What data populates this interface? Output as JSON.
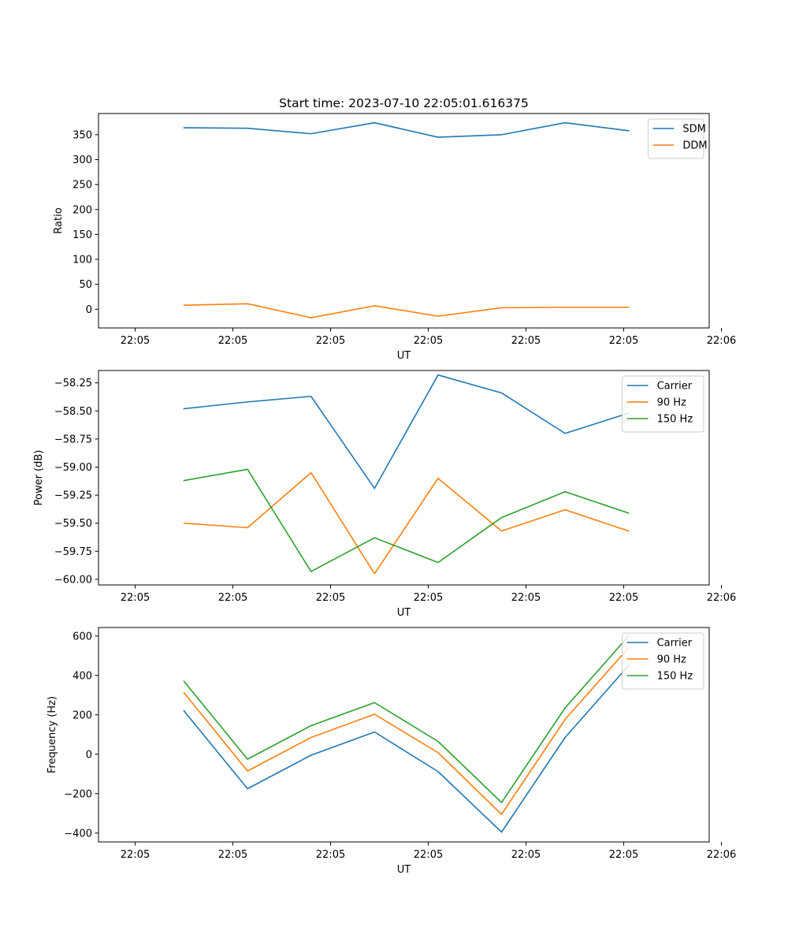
{
  "figure": {
    "title": "Start time: 2023-07-10 22:05:01.616375"
  },
  "chart_data": [
    {
      "type": "line",
      "xlabel": "UT",
      "ylabel": "Ratio",
      "xlim": [
        -0.75,
        11.75
      ],
      "ylim": [
        -37.5,
        392.5
      ],
      "x_ticks": [
        0,
        2,
        4,
        6,
        8,
        10,
        12
      ],
      "x_tick_labels": [
        "22:05",
        "22:05",
        "22:05",
        "22:05",
        "22:05",
        "22:05",
        "22:06"
      ],
      "y_ticks": [
        0,
        50,
        100,
        150,
        200,
        250,
        300,
        350
      ],
      "y_tick_labels": [
        "0",
        "50",
        "100",
        "150",
        "200",
        "250",
        "300",
        "350"
      ],
      "legend_position": "top-right",
      "x": [
        1,
        2.3,
        3.6,
        4.9,
        6.2,
        7.5,
        8.8,
        10.1
      ],
      "series": [
        {
          "name": "SDM",
          "color": "#1f77b4",
          "values": [
            364,
            363,
            352,
            374,
            345,
            350,
            374,
            358
          ]
        },
        {
          "name": "DDM",
          "color": "#ff7f0e",
          "values": [
            8,
            11,
            -17,
            7,
            -14,
            3,
            4,
            4
          ]
        }
      ]
    },
    {
      "type": "line",
      "xlabel": "UT",
      "ylabel": "Power (dB)",
      "xlim": [
        -0.75,
        11.75
      ],
      "ylim": [
        -60.05,
        -58.14
      ],
      "x_ticks": [
        0,
        2,
        4,
        6,
        8,
        10,
        12
      ],
      "x_tick_labels": [
        "22:05",
        "22:05",
        "22:05",
        "22:05",
        "22:05",
        "22:05",
        "22:06"
      ],
      "y_ticks": [
        -60.0,
        -59.75,
        -59.5,
        -59.25,
        -59.0,
        -58.75,
        -58.5,
        -58.25
      ],
      "y_tick_labels": [
        "−60.00",
        "−59.75",
        "−59.50",
        "−59.25",
        "−59.00",
        "−58.75",
        "−58.50",
        "−58.25"
      ],
      "legend_position": "top-right",
      "x": [
        1,
        2.3,
        3.6,
        4.9,
        6.2,
        7.5,
        8.8,
        10.1
      ],
      "series": [
        {
          "name": "Carrier",
          "color": "#1f77b4",
          "values": [
            -58.48,
            -58.42,
            -58.37,
            -59.19,
            -58.18,
            -58.34,
            -58.7,
            -58.52
          ]
        },
        {
          "name": "90 Hz",
          "color": "#ff7f0e",
          "values": [
            -59.5,
            -59.54,
            -59.05,
            -59.95,
            -59.1,
            -59.57,
            -59.38,
            -59.57
          ]
        },
        {
          "name": "150 Hz",
          "color": "#2ca02c",
          "values": [
            -59.12,
            -59.02,
            -59.93,
            -59.63,
            -59.85,
            -59.45,
            -59.22,
            -59.41
          ]
        }
      ]
    },
    {
      "type": "line",
      "xlabel": "UT",
      "ylabel": "Frequency (Hz)",
      "xlim": [
        -0.75,
        11.75
      ],
      "ylim": [
        -445,
        643
      ],
      "x_ticks": [
        0,
        2,
        4,
        6,
        8,
        10,
        12
      ],
      "x_tick_labels": [
        "22:05",
        "22:05",
        "22:05",
        "22:05",
        "22:05",
        "22:05",
        "22:06"
      ],
      "y_ticks": [
        -400,
        -200,
        0,
        200,
        400,
        600
      ],
      "y_tick_labels": [
        "−400",
        "−200",
        "0",
        "200",
        "400",
        "600"
      ],
      "legend_position": "top-right",
      "x": [
        1,
        2.3,
        3.6,
        4.9,
        6.2,
        7.5,
        8.8,
        10.1
      ],
      "series": [
        {
          "name": "Carrier",
          "color": "#1f77b4",
          "values": [
            220,
            -175,
            -5,
            113,
            -88,
            -395,
            85,
            450
          ]
        },
        {
          "name": "90 Hz",
          "color": "#ff7f0e",
          "values": [
            312,
            -85,
            85,
            203,
            8,
            -305,
            177,
            540
          ]
        },
        {
          "name": "150 Hz",
          "color": "#2ca02c",
          "values": [
            370,
            -25,
            145,
            262,
            65,
            -245,
            235,
            600
          ]
        }
      ]
    }
  ]
}
